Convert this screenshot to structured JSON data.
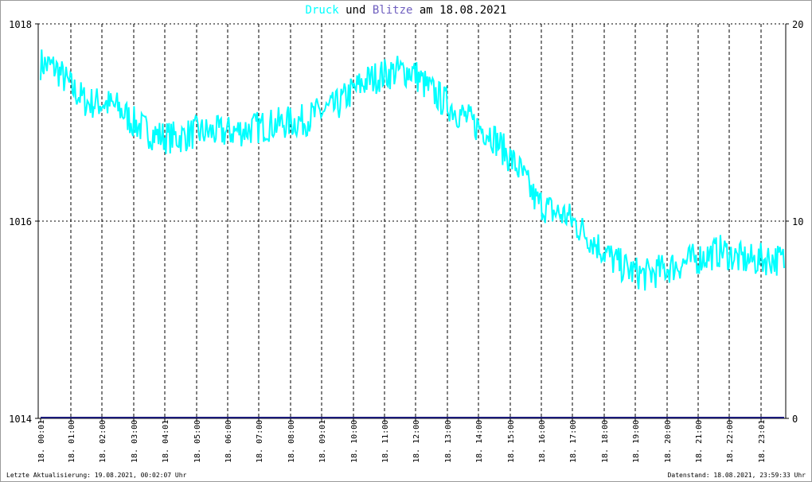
{
  "title": {
    "druck": "Druck",
    "und": "und",
    "blitze": "Blitze",
    "am": "am",
    "date": "18.08.2021"
  },
  "footer": {
    "left": "Letzte Aktualisierung: 19.08.2021, 00:02:07 Uhr",
    "right": "Datenstand: 18.08.2021, 23:59:33 Uhr"
  },
  "colors": {
    "druck": "#00ffff",
    "blitze": "#1a1a7a",
    "grid": "#000000"
  },
  "chart_data": {
    "type": "line",
    "grid": true,
    "y_left": {
      "ylim": [
        1014,
        1018
      ],
      "ticks": [
        "1014",
        "1016",
        "1018"
      ]
    },
    "y_right": {
      "ylim": [
        0,
        20
      ],
      "ticks": [
        "0",
        "10",
        "20"
      ]
    },
    "x_ticks": [
      "18. 00:01",
      "18. 01:00",
      "18. 02:00",
      "18. 03:00",
      "18. 04:01",
      "18. 05:00",
      "18. 06:00",
      "18. 07:00",
      "18. 08:00",
      "18. 09:01",
      "18. 10:00",
      "18. 11:00",
      "18. 12:00",
      "18. 13:00",
      "18. 14:00",
      "18. 15:00",
      "18. 16:00",
      "18. 17:00",
      "18. 18:00",
      "18. 19:00",
      "18. 20:00",
      "18. 21:00",
      "18. 22:00",
      "18. 23:01"
    ],
    "series": [
      {
        "name": "Druck",
        "axis": "left",
        "x_hours": [
          0,
          0.5,
          1,
          1.5,
          2,
          2.5,
          3,
          3.5,
          4,
          4.5,
          5,
          5.5,
          6,
          6.5,
          7,
          7.5,
          8,
          8.5,
          9,
          9.5,
          10,
          10.5,
          11,
          11.5,
          12,
          12.5,
          13,
          13.5,
          14,
          14.5,
          15,
          15.5,
          16,
          16.5,
          17,
          17.5,
          18,
          18.5,
          19,
          19.5,
          20,
          20.5,
          21,
          21.5,
          22,
          22.5,
          23,
          23.5,
          24
        ],
        "values": [
          1017.6,
          1017.55,
          1017.35,
          1017.2,
          1017.2,
          1017.15,
          1017.0,
          1016.9,
          1016.85,
          1016.85,
          1016.9,
          1016.9,
          1016.9,
          1016.92,
          1016.95,
          1016.98,
          1017.0,
          1017.02,
          1017.1,
          1017.15,
          1017.3,
          1017.42,
          1017.48,
          1017.52,
          1017.52,
          1017.35,
          1017.22,
          1017.1,
          1016.98,
          1016.9,
          1016.7,
          1016.5,
          1016.2,
          1016.1,
          1016.05,
          1015.9,
          1015.75,
          1015.6,
          1015.5,
          1015.45,
          1015.5,
          1015.55,
          1015.6,
          1015.65,
          1015.7,
          1015.62,
          1015.6,
          1015.62,
          1015.6
        ]
      },
      {
        "name": "Blitze",
        "axis": "right",
        "x_hours": [
          0,
          24
        ],
        "values": [
          0,
          0
        ]
      }
    ]
  }
}
